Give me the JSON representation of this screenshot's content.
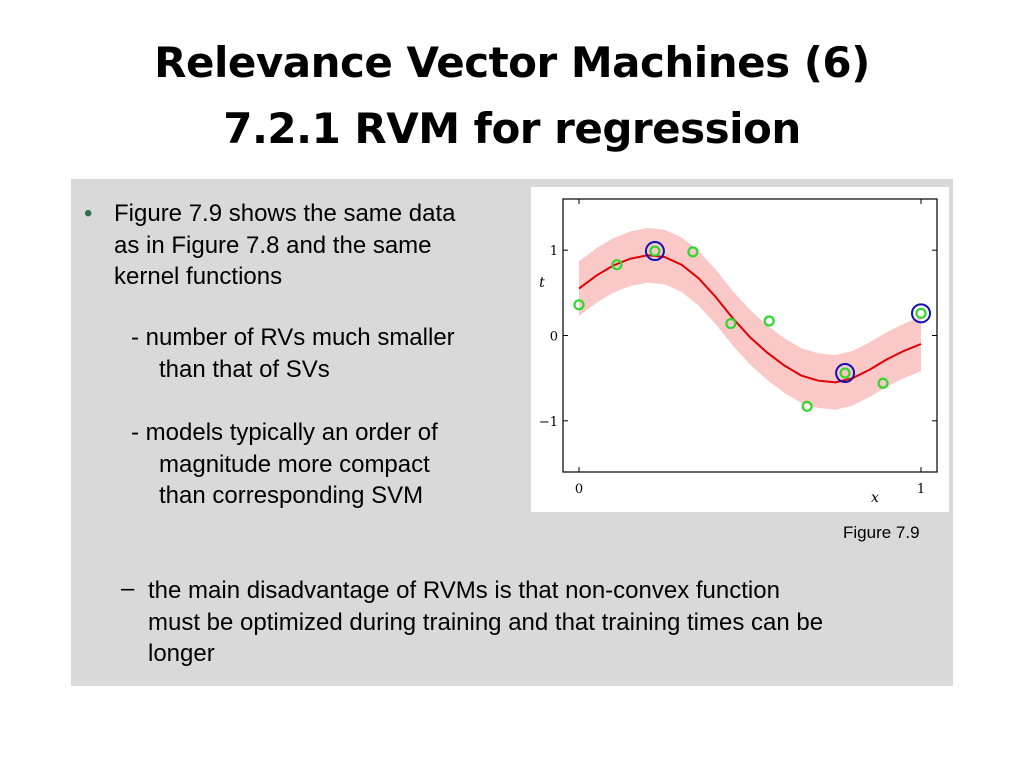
{
  "slide": {
    "title_line1": "Relevance Vector Machines (6)",
    "title_line2": "7.2.1 RVM for regression"
  },
  "content": {
    "bullet_marker": "•",
    "bullet_lines": [
      "Figure 7.9 shows the same data",
      "as in Figure 7.8 and the same",
      "kernel functions"
    ],
    "sub1_lines": [
      "- number of RVs much smaller",
      "than that of SVs"
    ],
    "sub2_lines": [
      "- models typically an order of",
      "magnitude more compact",
      "than corresponding SVM"
    ],
    "dash_marker": "–",
    "last_lines": [
      "the main disadvantage of RVMs is that non-convex function",
      "must be optimized during training and that training times can be",
      "longer"
    ],
    "figure_caption": "Figure 7.9"
  },
  "colors": {
    "panel": "#d9d9d9",
    "curve": "#e00000",
    "band": "#fbc8c8",
    "points": "#2ed82e",
    "relevance_vectors": "#1010b4"
  },
  "chart_data": {
    "type": "scatter",
    "title": "",
    "xlabel": "x",
    "ylabel": "t",
    "xlim": [
      0,
      1
    ],
    "ylim": [
      -1.6,
      1.6
    ],
    "xticks": [
      "0",
      "1"
    ],
    "yticks": [
      "−1",
      "0",
      "1"
    ],
    "points": [
      {
        "x": 0.0,
        "y": 0.36
      },
      {
        "x": 0.111,
        "y": 0.83
      },
      {
        "x": 0.222,
        "y": 0.99
      },
      {
        "x": 0.333,
        "y": 0.98
      },
      {
        "x": 0.444,
        "y": 0.14
      },
      {
        "x": 0.556,
        "y": 0.17
      },
      {
        "x": 0.667,
        "y": -0.83
      },
      {
        "x": 0.778,
        "y": -0.44
      },
      {
        "x": 0.889,
        "y": -0.56
      },
      {
        "x": 1.0,
        "y": 0.26
      }
    ],
    "relevance_vectors": [
      {
        "x": 0.222,
        "y": 0.99
      },
      {
        "x": 0.778,
        "y": -0.44
      },
      {
        "x": 1.0,
        "y": 0.26
      }
    ],
    "mean_curve": {
      "x": [
        0,
        0.05,
        0.1,
        0.15,
        0.2,
        0.25,
        0.3,
        0.35,
        0.4,
        0.45,
        0.5,
        0.55,
        0.6,
        0.65,
        0.7,
        0.75,
        0.8,
        0.85,
        0.9,
        0.95,
        1.0
      ],
      "y": [
        0.55,
        0.7,
        0.82,
        0.9,
        0.94,
        0.92,
        0.83,
        0.67,
        0.45,
        0.2,
        -0.02,
        -0.2,
        -0.35,
        -0.47,
        -0.53,
        -0.55,
        -0.5,
        -0.4,
        -0.28,
        -0.18,
        -0.1
      ]
    },
    "band_halfwidth": 0.32
  }
}
